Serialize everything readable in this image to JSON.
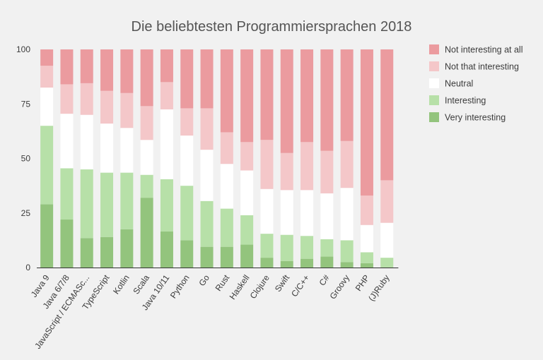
{
  "chart_data": {
    "type": "bar",
    "stacked": true,
    "title": "Die beliebtesten Programmiersprachen 2018",
    "xlabel": "",
    "ylabel": "",
    "ylim": [
      0,
      100
    ],
    "yticks": [
      0,
      25,
      50,
      75,
      100
    ],
    "grid": false,
    "legend_position": "right",
    "categories": [
      "Java 9",
      "Java 6/7/8",
      "JavaScript / ECMASc...",
      "TypeScript",
      "Kotlin",
      "Scala",
      "Java 10/11",
      "Python",
      "Go",
      "Rust",
      "Haskell",
      "Clojure",
      "Swift",
      "C/C++",
      "C#",
      "Groovy",
      "PHP",
      "(J)Ruby"
    ],
    "series": [
      {
        "name": "Very interesting",
        "color": "#93c47d",
        "values": [
          29,
          22,
          13.5,
          14,
          17.5,
          32,
          16.5,
          12.5,
          9.5,
          9.5,
          10.5,
          4.5,
          3,
          4,
          5,
          2.5,
          2,
          0
        ]
      },
      {
        "name": "Interesting",
        "color": "#b7e0a8",
        "values": [
          36,
          23.5,
          31.5,
          29.5,
          26,
          10.5,
          24,
          25,
          21,
          17.5,
          13.5,
          11,
          12,
          10.5,
          8,
          10,
          5,
          4.5
        ]
      },
      {
        "name": "Neutral",
        "color": "#ffffff",
        "values": [
          17.5,
          25,
          25,
          22.5,
          20.5,
          16,
          32,
          23,
          23.5,
          20.5,
          20.5,
          20.5,
          20.5,
          21,
          21,
          24,
          12.5,
          16
        ]
      },
      {
        "name": "Not that interesting",
        "color": "#f4c7c9",
        "values": [
          10,
          13.5,
          14.5,
          15,
          16,
          15.5,
          12.5,
          12.5,
          19,
          14.5,
          13,
          22.5,
          17,
          22,
          19.5,
          21.5,
          13.5,
          19.5
        ]
      },
      {
        "name": "Not interesting at all",
        "color": "#eb9b9f",
        "values": [
          7.5,
          16,
          15.5,
          19,
          20,
          26,
          15,
          27,
          27,
          38,
          42.5,
          41.5,
          47.5,
          42.5,
          46.5,
          42,
          67,
          60
        ]
      }
    ]
  }
}
